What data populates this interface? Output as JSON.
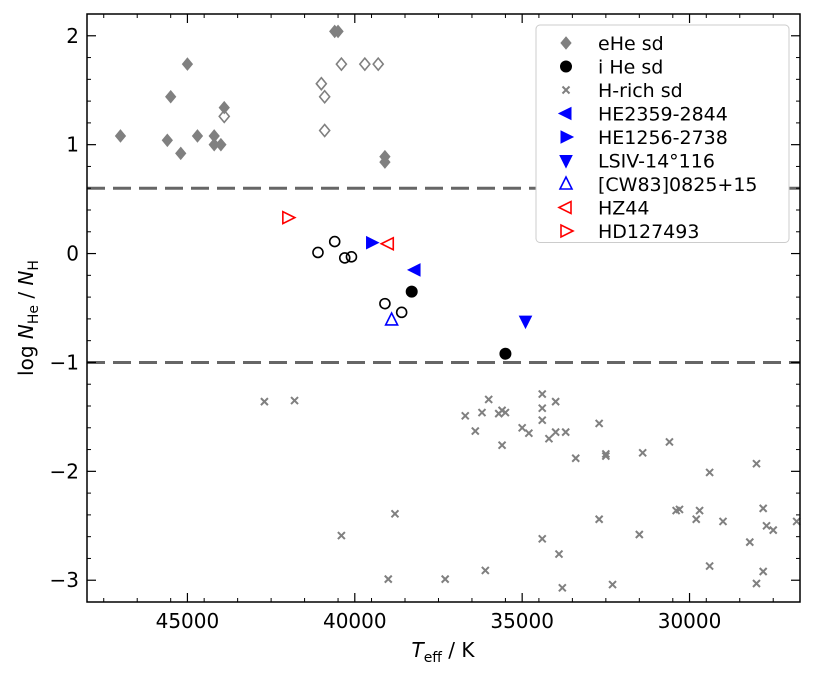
{
  "chart_data": {
    "type": "scatter",
    "xlabel": "T_eff / K",
    "ylabel": "log N_He / N_H",
    "xlim": [
      48000,
      26700
    ],
    "ylim": [
      -3.2,
      2.2
    ],
    "x_ticks": [
      45000,
      40000,
      35000,
      30000
    ],
    "x_tick_labels": [
      "45000",
      "40000",
      "35000",
      "30000"
    ],
    "y_ticks": [
      2,
      1,
      0,
      -1,
      -2,
      -3
    ],
    "y_tick_labels": [
      "2",
      "1",
      "0",
      "−1",
      "−2",
      "−3"
    ],
    "reference_lines": [
      0.6,
      -1.0
    ],
    "legend_position": "top-right",
    "colors": {
      "grey": "#808080",
      "black": "#000000",
      "blue": "#0000ff",
      "red": "#ff0000",
      "dash": "#666666"
    },
    "series": [
      {
        "name": "eHe sd",
        "marker": "diamond",
        "filled": true,
        "color": "#808080",
        "points": [
          [
            47000,
            1.08
          ],
          [
            45600,
            1.04
          ],
          [
            45500,
            1.44
          ],
          [
            45200,
            0.92
          ],
          [
            45000,
            1.74
          ],
          [
            44700,
            1.08
          ],
          [
            44200,
            1.08
          ],
          [
            44200,
            1.0
          ],
          [
            44000,
            1.0
          ],
          [
            43900,
            1.34
          ],
          [
            40600,
            2.04
          ],
          [
            40500,
            2.04
          ],
          [
            39100,
            0.89
          ],
          [
            39100,
            0.84
          ]
        ]
      },
      {
        "name": "eHe sd (open)",
        "marker": "diamond",
        "filled": false,
        "color": "#808080",
        "points": [
          [
            43900,
            1.26
          ],
          [
            41000,
            1.56
          ],
          [
            40900,
            1.44
          ],
          [
            40900,
            1.13
          ],
          [
            40400,
            1.74
          ],
          [
            39700,
            1.74
          ],
          [
            39300,
            1.74
          ]
        ]
      },
      {
        "name": "iHe sd",
        "marker": "circle",
        "filled": true,
        "color": "#000000",
        "points": [
          [
            38300,
            -0.35
          ],
          [
            35500,
            -0.92
          ]
        ]
      },
      {
        "name": "iHe sd (open)",
        "marker": "circle",
        "filled": false,
        "color": "#000000",
        "points": [
          [
            41100,
            0.01
          ],
          [
            40600,
            0.11
          ],
          [
            40300,
            -0.04
          ],
          [
            40100,
            -0.03
          ],
          [
            39100,
            -0.46
          ],
          [
            38600,
            -0.54
          ]
        ]
      },
      {
        "name": "H-rich sd",
        "marker": "x",
        "filled": true,
        "color": "#808080",
        "points": [
          [
            42700,
            -1.36
          ],
          [
            41800,
            -1.35
          ],
          [
            40400,
            -2.59
          ],
          [
            38800,
            -2.39
          ],
          [
            39000,
            -2.99
          ],
          [
            37300,
            -2.99
          ],
          [
            36700,
            -1.49
          ],
          [
            36400,
            -1.63
          ],
          [
            36200,
            -1.46
          ],
          [
            36000,
            -1.34
          ],
          [
            35700,
            -1.47
          ],
          [
            35600,
            -1.44
          ],
          [
            35500,
            -1.46
          ],
          [
            35600,
            -1.76
          ],
          [
            36100,
            -2.91
          ],
          [
            35000,
            -1.6
          ],
          [
            34800,
            -1.65
          ],
          [
            34400,
            -1.29
          ],
          [
            34400,
            -1.42
          ],
          [
            34400,
            -1.53
          ],
          [
            34200,
            -1.7
          ],
          [
            34000,
            -1.64
          ],
          [
            34000,
            -1.36
          ],
          [
            33700,
            -1.64
          ],
          [
            33400,
            -1.88
          ],
          [
            34400,
            -2.62
          ],
          [
            33900,
            -2.76
          ],
          [
            33800,
            -3.07
          ],
          [
            32700,
            -1.56
          ],
          [
            32500,
            -1.84
          ],
          [
            32500,
            -1.86
          ],
          [
            31400,
            -1.83
          ],
          [
            32700,
            -2.44
          ],
          [
            31500,
            -2.58
          ],
          [
            32300,
            -3.04
          ],
          [
            30600,
            -1.73
          ],
          [
            30400,
            -2.36
          ],
          [
            30300,
            -2.35
          ],
          [
            29700,
            -2.36
          ],
          [
            29800,
            -2.44
          ],
          [
            29400,
            -2.01
          ],
          [
            29400,
            -2.87
          ],
          [
            29000,
            -2.46
          ],
          [
            28200,
            -2.65
          ],
          [
            28000,
            -1.93
          ],
          [
            27800,
            -2.34
          ],
          [
            27700,
            -2.5
          ],
          [
            27500,
            -2.54
          ],
          [
            27800,
            -2.92
          ],
          [
            28000,
            -3.03
          ],
          [
            26800,
            -2.46
          ]
        ]
      },
      {
        "name": "HE2359-2844",
        "marker": "triangle-left",
        "filled": true,
        "color": "#0000ff",
        "points": [
          [
            38200,
            -0.15
          ]
        ]
      },
      {
        "name": "HE1256-2738",
        "marker": "triangle-right",
        "filled": true,
        "color": "#0000ff",
        "points": [
          [
            39500,
            0.1
          ]
        ]
      },
      {
        "name": "LSIV-14°116",
        "marker": "triangle-down",
        "filled": true,
        "color": "#0000ff",
        "points": [
          [
            34900,
            -0.62
          ]
        ]
      },
      {
        "name": "[CW83]0825+15",
        "marker": "triangle-up",
        "filled": false,
        "color": "#0000ff",
        "points": [
          [
            38900,
            -0.61
          ]
        ]
      },
      {
        "name": "HZ44",
        "marker": "triangle-left",
        "filled": false,
        "color": "#ff0000",
        "points": [
          [
            39000,
            0.09
          ]
        ]
      },
      {
        "name": "HD127493",
        "marker": "triangle-right",
        "filled": false,
        "color": "#ff0000",
        "points": [
          [
            42000,
            0.33
          ]
        ]
      }
    ],
    "legend": [
      {
        "label": "eHe sd",
        "marker": "diamond",
        "filled": true,
        "color": "#808080"
      },
      {
        "label": "i He sd",
        "marker": "circle",
        "filled": true,
        "color": "#000000"
      },
      {
        "label": "H-rich sd",
        "marker": "x",
        "filled": true,
        "color": "#808080"
      },
      {
        "label": "HE2359-2844",
        "marker": "triangle-left",
        "filled": true,
        "color": "#0000ff"
      },
      {
        "label": "HE1256-2738",
        "marker": "triangle-right",
        "filled": true,
        "color": "#0000ff"
      },
      {
        "label": "LSIV-14°116",
        "marker": "triangle-down",
        "filled": true,
        "color": "#0000ff"
      },
      {
        "label": "[CW83]0825+15",
        "marker": "triangle-up",
        "filled": false,
        "color": "#0000ff"
      },
      {
        "label": "HZ44",
        "marker": "triangle-left",
        "filled": false,
        "color": "#ff0000"
      },
      {
        "label": "HD127493",
        "marker": "triangle-right",
        "filled": false,
        "color": "#ff0000"
      }
    ]
  }
}
